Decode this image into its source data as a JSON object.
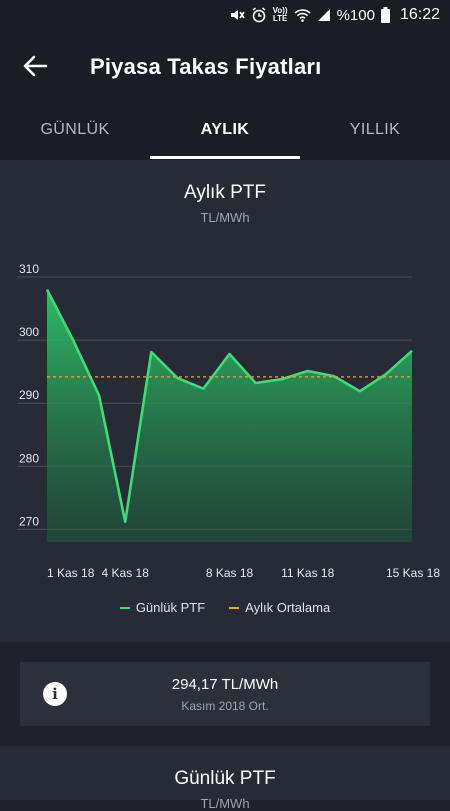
{
  "status": {
    "battery": "%100",
    "time": "16:22",
    "net_top": "Vo))",
    "net_bottom": "LTE"
  },
  "appbar": {
    "title": "Piyasa Takas Fiyatları"
  },
  "tabs": [
    {
      "label": "GÜNLÜK",
      "active": false
    },
    {
      "label": "AYLIK",
      "active": true
    },
    {
      "label": "YILLIK",
      "active": false
    }
  ],
  "chart": {
    "title": "Aylık PTF",
    "unit": "TL/MWh",
    "legend": [
      "Günlük PTF",
      "Aylık Ortalama"
    ],
    "colors": {
      "line": "#3ddc76",
      "average": "#f0a23c"
    }
  },
  "chart_data": {
    "type": "area",
    "title": "Aylık PTF",
    "ylabel": "TL/MWh",
    "ylim": [
      268,
      310
    ],
    "yticks": [
      270,
      280,
      290,
      300,
      310
    ],
    "xticks": [
      "1 Kas 18",
      "4 Kas 18",
      "8 Kas 18",
      "11 Kas 18",
      "15 Kas 18"
    ],
    "series": [
      {
        "name": "Günlük PTF",
        "x": [
          1,
          2,
          3,
          4,
          5,
          6,
          7,
          8,
          9,
          10,
          11,
          12,
          13,
          14,
          15
        ],
        "values": [
          308,
          300,
          291.2,
          271.2,
          298.1,
          294,
          292.3,
          297.8,
          293.2,
          293.8,
          295.1,
          294.3,
          291.9,
          294.6,
          298.3
        ]
      },
      {
        "name": "Aylık Ortalama",
        "x": [
          1,
          15
        ],
        "values": [
          294.17,
          294.17
        ]
      }
    ]
  },
  "info": {
    "value": "294,17 TL/MWh",
    "sub": "Kasım 2018 Ort."
  },
  "bottom": {
    "title": "Günlük PTF",
    "unit": "TL/MWh"
  }
}
